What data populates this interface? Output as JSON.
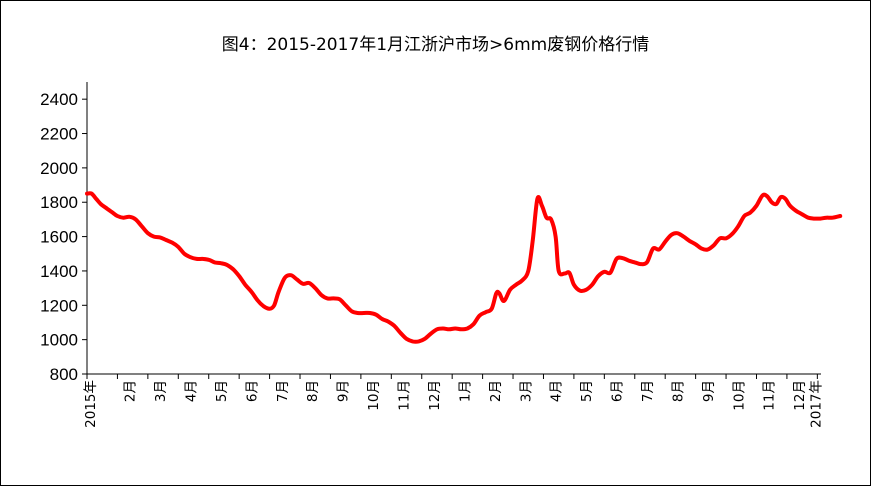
{
  "chart_data": {
    "type": "line",
    "title": "图4：2015-2017年1月江浙沪市场>6mm废钢价格行情",
    "ylim": [
      800,
      2500
    ],
    "yticks": [
      800,
      1000,
      1200,
      1400,
      1600,
      1800,
      2000,
      2200,
      2400
    ],
    "xlabels": [
      "2015年",
      "2月",
      "3月",
      "4月",
      "5月",
      "6月",
      "7月",
      "8月",
      "9月",
      "10月",
      "11月",
      "12月",
      "1月",
      "2月",
      "3月",
      "4月",
      "5月",
      "6月",
      "7月",
      "8月",
      "9月",
      "10月",
      "11月",
      "12月",
      "2017年"
    ],
    "grid": false,
    "legend": "none",
    "series": [
      {
        "color": "#ff0000",
        "points": [
          [
            0,
            1850
          ],
          [
            0.15,
            1850
          ],
          [
            0.3,
            1820
          ],
          [
            0.45,
            1790
          ],
          [
            0.6,
            1770
          ],
          [
            0.8,
            1745
          ],
          [
            1.0,
            1720
          ],
          [
            1.2,
            1710
          ],
          [
            1.4,
            1715
          ],
          [
            1.6,
            1700
          ],
          [
            1.8,
            1660
          ],
          [
            2.0,
            1620
          ],
          [
            2.2,
            1600
          ],
          [
            2.4,
            1595
          ],
          [
            2.6,
            1580
          ],
          [
            2.8,
            1565
          ],
          [
            3.0,
            1540
          ],
          [
            3.2,
            1500
          ],
          [
            3.4,
            1480
          ],
          [
            3.6,
            1470
          ],
          [
            3.8,
            1470
          ],
          [
            4.0,
            1465
          ],
          [
            4.2,
            1450
          ],
          [
            4.4,
            1445
          ],
          [
            4.6,
            1435
          ],
          [
            4.8,
            1410
          ],
          [
            5.0,
            1370
          ],
          [
            5.2,
            1320
          ],
          [
            5.4,
            1280
          ],
          [
            5.6,
            1230
          ],
          [
            5.8,
            1195
          ],
          [
            6.0,
            1180
          ],
          [
            6.15,
            1200
          ],
          [
            6.3,
            1280
          ],
          [
            6.5,
            1360
          ],
          [
            6.7,
            1375
          ],
          [
            6.9,
            1350
          ],
          [
            7.1,
            1325
          ],
          [
            7.3,
            1330
          ],
          [
            7.5,
            1300
          ],
          [
            7.7,
            1260
          ],
          [
            7.9,
            1240
          ],
          [
            8.1,
            1240
          ],
          [
            8.3,
            1235
          ],
          [
            8.5,
            1200
          ],
          [
            8.7,
            1165
          ],
          [
            8.9,
            1155
          ],
          [
            9.1,
            1155
          ],
          [
            9.3,
            1155
          ],
          [
            9.5,
            1145
          ],
          [
            9.7,
            1120
          ],
          [
            9.9,
            1105
          ],
          [
            10.1,
            1080
          ],
          [
            10.3,
            1040
          ],
          [
            10.5,
            1005
          ],
          [
            10.7,
            990
          ],
          [
            10.9,
            990
          ],
          [
            11.1,
            1005
          ],
          [
            11.3,
            1035
          ],
          [
            11.5,
            1060
          ],
          [
            11.7,
            1065
          ],
          [
            11.9,
            1060
          ],
          [
            12.1,
            1065
          ],
          [
            12.3,
            1060
          ],
          [
            12.5,
            1065
          ],
          [
            12.7,
            1090
          ],
          [
            12.9,
            1140
          ],
          [
            13.1,
            1160
          ],
          [
            13.3,
            1180
          ],
          [
            13.45,
            1270
          ],
          [
            13.55,
            1270
          ],
          [
            13.7,
            1225
          ],
          [
            13.9,
            1290
          ],
          [
            14.1,
            1320
          ],
          [
            14.3,
            1345
          ],
          [
            14.5,
            1400
          ],
          [
            14.65,
            1580
          ],
          [
            14.8,
            1820
          ],
          [
            14.95,
            1780
          ],
          [
            15.1,
            1710
          ],
          [
            15.25,
            1700
          ],
          [
            15.4,
            1600
          ],
          [
            15.5,
            1400
          ],
          [
            15.7,
            1385
          ],
          [
            15.85,
            1390
          ],
          [
            16.0,
            1320
          ],
          [
            16.2,
            1285
          ],
          [
            16.4,
            1290
          ],
          [
            16.6,
            1320
          ],
          [
            16.8,
            1370
          ],
          [
            17.0,
            1395
          ],
          [
            17.2,
            1390
          ],
          [
            17.4,
            1470
          ],
          [
            17.6,
            1475
          ],
          [
            17.8,
            1460
          ],
          [
            18.0,
            1450
          ],
          [
            18.2,
            1440
          ],
          [
            18.4,
            1450
          ],
          [
            18.6,
            1530
          ],
          [
            18.8,
            1525
          ],
          [
            19.0,
            1570
          ],
          [
            19.2,
            1610
          ],
          [
            19.4,
            1620
          ],
          [
            19.6,
            1600
          ],
          [
            19.8,
            1575
          ],
          [
            20.0,
            1555
          ],
          [
            20.2,
            1530
          ],
          [
            20.4,
            1525
          ],
          [
            20.6,
            1550
          ],
          [
            20.8,
            1590
          ],
          [
            21.0,
            1590
          ],
          [
            21.2,
            1615
          ],
          [
            21.4,
            1660
          ],
          [
            21.6,
            1720
          ],
          [
            21.8,
            1740
          ],
          [
            22.0,
            1780
          ],
          [
            22.2,
            1840
          ],
          [
            22.35,
            1835
          ],
          [
            22.5,
            1800
          ],
          [
            22.65,
            1790
          ],
          [
            22.8,
            1830
          ],
          [
            22.95,
            1820
          ],
          [
            23.1,
            1780
          ],
          [
            23.3,
            1750
          ],
          [
            23.5,
            1730
          ],
          [
            23.7,
            1710
          ],
          [
            23.9,
            1705
          ],
          [
            24.1,
            1705
          ],
          [
            24.3,
            1710
          ],
          [
            24.5,
            1710
          ],
          [
            24.75,
            1720
          ]
        ]
      }
    ]
  }
}
